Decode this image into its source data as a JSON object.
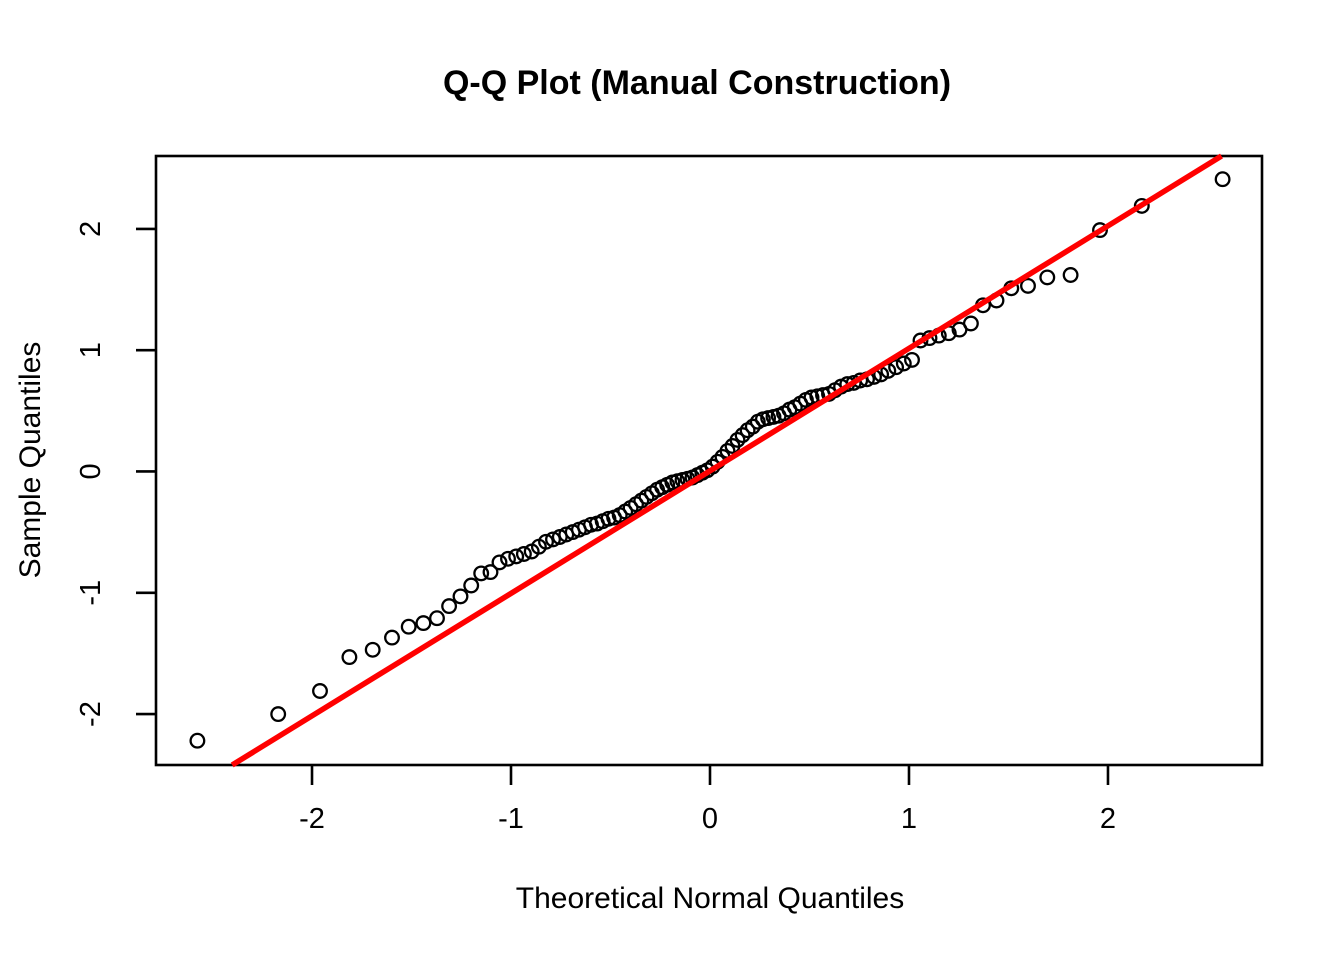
{
  "colors": {
    "background": "#ffffff",
    "foreground": "#000000",
    "reference_line": "#ff0000"
  },
  "chart_data": {
    "type": "scatter",
    "title": "Q-Q Plot (Manual Construction)",
    "xlabel": "Theoretical Normal Quantiles",
    "ylabel": "Sample Quantiles",
    "grid": false,
    "legend": "none",
    "n_points": 100,
    "xlim": [
      -2.784,
      2.774
    ],
    "ylim": [
      -2.42,
      2.601
    ],
    "x_ticks": {
      "values": [
        -2,
        -1,
        0,
        1,
        2
      ],
      "labels": [
        "-2",
        "-1",
        "0",
        "1",
        "2"
      ]
    },
    "y_ticks": {
      "values": [
        -2,
        -1,
        0,
        1,
        2
      ],
      "labels": [
        "-2",
        "-1",
        "0",
        "1",
        "2"
      ]
    },
    "reference_line": {
      "name": "qq-line",
      "color": "#ff0000",
      "slope": 1.01,
      "intercept": 0.005
    },
    "series": [
      {
        "name": "sample-vs-theoretical-quantiles",
        "marker": "open-circle",
        "color": "#000000",
        "x": [
          -2.576,
          -2.17,
          -1.96,
          -1.812,
          -1.695,
          -1.598,
          -1.514,
          -1.44,
          -1.372,
          -1.311,
          -1.254,
          -1.2,
          -1.15,
          -1.103,
          -1.058,
          -1.015,
          -0.974,
          -0.935,
          -0.896,
          -0.86,
          -0.824,
          -0.789,
          -0.755,
          -0.722,
          -0.69,
          -0.659,
          -0.628,
          -0.598,
          -0.568,
          -0.539,
          -0.51,
          -0.482,
          -0.454,
          -0.426,
          -0.399,
          -0.372,
          -0.345,
          -0.319,
          -0.292,
          -0.266,
          -0.24,
          -0.215,
          -0.189,
          -0.164,
          -0.138,
          -0.113,
          -0.088,
          -0.063,
          -0.038,
          -0.013,
          0.013,
          0.038,
          0.063,
          0.088,
          0.113,
          0.138,
          0.164,
          0.189,
          0.215,
          0.24,
          0.266,
          0.292,
          0.319,
          0.345,
          0.372,
          0.399,
          0.426,
          0.454,
          0.482,
          0.51,
          0.539,
          0.568,
          0.598,
          0.628,
          0.659,
          0.69,
          0.722,
          0.755,
          0.789,
          0.824,
          0.86,
          0.896,
          0.935,
          0.974,
          1.015,
          1.058,
          1.103,
          1.15,
          1.2,
          1.254,
          1.311,
          1.372,
          1.44,
          1.514,
          1.598,
          1.695,
          1.812,
          1.96,
          2.17,
          2.576
        ],
        "y": [
          -2.22,
          -2.0,
          -1.81,
          -1.53,
          -1.47,
          -1.37,
          -1.28,
          -1.25,
          -1.21,
          -1.11,
          -1.03,
          -0.94,
          -0.84,
          -0.83,
          -0.75,
          -0.72,
          -0.7,
          -0.68,
          -0.66,
          -0.62,
          -0.58,
          -0.56,
          -0.54,
          -0.52,
          -0.5,
          -0.48,
          -0.46,
          -0.44,
          -0.43,
          -0.41,
          -0.39,
          -0.38,
          -0.36,
          -0.33,
          -0.3,
          -0.27,
          -0.24,
          -0.21,
          -0.18,
          -0.15,
          -0.13,
          -0.11,
          -0.09,
          -0.08,
          -0.07,
          -0.06,
          -0.05,
          -0.03,
          -0.01,
          0.01,
          0.04,
          0.08,
          0.12,
          0.17,
          0.21,
          0.26,
          0.3,
          0.34,
          0.37,
          0.41,
          0.43,
          0.44,
          0.45,
          0.46,
          0.48,
          0.51,
          0.53,
          0.56,
          0.59,
          0.61,
          0.62,
          0.63,
          0.64,
          0.67,
          0.7,
          0.72,
          0.73,
          0.75,
          0.76,
          0.78,
          0.8,
          0.83,
          0.86,
          0.89,
          0.92,
          1.08,
          1.1,
          1.12,
          1.14,
          1.17,
          1.22,
          1.37,
          1.41,
          1.51,
          1.53,
          1.6,
          1.62,
          1.99,
          2.19,
          2.41
        ]
      }
    ]
  }
}
